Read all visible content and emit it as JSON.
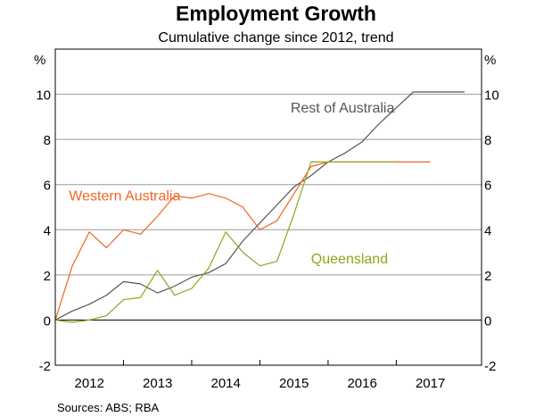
{
  "chart_data": {
    "type": "line",
    "title": "Employment Growth",
    "subtitle": "Cumulative change since 2012, trend",
    "source": "Sources:   ABS; RBA",
    "y_unit_left": "%",
    "y_unit_right": "%",
    "ylim": [
      -2,
      12
    ],
    "yticks": [
      -2,
      0,
      2,
      4,
      6,
      8,
      10
    ],
    "xlim": [
      2011.5,
      2017.75
    ],
    "xticks": [
      "2012",
      "2013",
      "2014",
      "2015",
      "2016",
      "2017"
    ],
    "grid": true,
    "zero_line": true,
    "series": [
      {
        "name": "Rest of Australia",
        "color": "#555555",
        "label_at": [
          2014.95,
          9.2
        ],
        "x": [
          2011.5,
          2011.75,
          2012.0,
          2012.25,
          2012.5,
          2012.75,
          2013.0,
          2013.25,
          2013.5,
          2013.75,
          2014.0,
          2014.25,
          2014.5,
          2014.75,
          2015.0,
          2015.25,
          2015.5,
          2015.75,
          2016.0,
          2016.25,
          2016.5,
          2016.75,
          2017.0,
          2017.25,
          2017.5
        ],
        "y": [
          0.0,
          0.4,
          0.7,
          1.1,
          1.7,
          1.6,
          1.2,
          1.5,
          1.9,
          2.1,
          2.5,
          3.5,
          4.3,
          5.1,
          5.9,
          6.4,
          7.0,
          7.4,
          7.9,
          8.7,
          9.4,
          10.1,
          10.1,
          10.1,
          10.1
        ]
      },
      {
        "name": "Western Australia",
        "color": "#f26522",
        "label_at": [
          2011.7,
          5.3
        ],
        "x": [
          2011.5,
          2011.75,
          2012.0,
          2012.25,
          2012.5,
          2012.75,
          2013.0,
          2013.25,
          2013.5,
          2013.75,
          2014.0,
          2014.25,
          2014.5,
          2014.75,
          2015.0,
          2015.25,
          2015.5,
          2015.75,
          2016.0,
          2016.25,
          2016.5,
          2016.75,
          2017.0
        ],
        "y": [
          0.0,
          2.4,
          3.9,
          3.2,
          4.0,
          3.8,
          4.6,
          5.5,
          5.4,
          5.6,
          5.4,
          5.0,
          4.0,
          4.4,
          5.6,
          6.8,
          7.0,
          7.0,
          7.0,
          7.0,
          7.0,
          7.0,
          7.0
        ]
      },
      {
        "name": "Queensland",
        "color": "#94a21c",
        "label_at": [
          2015.25,
          2.5
        ],
        "x": [
          2011.5,
          2011.75,
          2012.0,
          2012.25,
          2012.5,
          2012.75,
          2013.0,
          2013.25,
          2013.5,
          2013.75,
          2014.0,
          2014.25,
          2014.5,
          2014.75,
          2015.0,
          2015.25,
          2015.5,
          2015.75,
          2016.0,
          2016.25,
          2016.5
        ],
        "y": [
          0.0,
          -0.1,
          0.0,
          0.2,
          0.9,
          1.0,
          2.2,
          1.1,
          1.4,
          2.3,
          3.9,
          3.0,
          2.4,
          2.6,
          4.7,
          7.0,
          7.0,
          7.0,
          7.0,
          7.0,
          7.0
        ]
      }
    ]
  }
}
